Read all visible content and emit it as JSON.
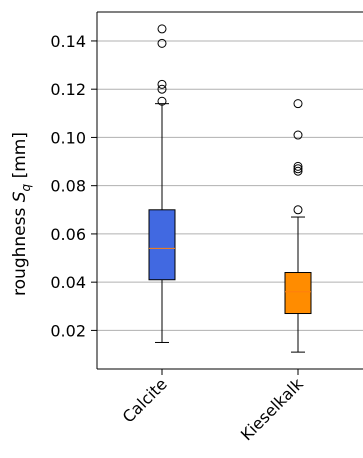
{
  "chart_data": {
    "type": "box",
    "categories": [
      "Calcite",
      "Kieselkalk"
    ],
    "ylabel_prefix": "roughness ",
    "ylabel_symbol": "S",
    "ylabel_subscript": "q",
    "ylabel_suffix": " [mm]",
    "ylim": [
      0.004,
      0.152
    ],
    "yticks": [
      0.02,
      0.04,
      0.06,
      0.08,
      0.1,
      0.12,
      0.14
    ],
    "ytick_labels": [
      "0.02",
      "0.04",
      "0.06",
      "0.08",
      "0.10",
      "0.12",
      "0.14"
    ],
    "grid": "horizontal",
    "boxes": [
      {
        "category": "Calcite",
        "color": "#4169e1",
        "whisker_low": 0.015,
        "q1": 0.041,
        "median": 0.054,
        "q3": 0.07,
        "whisker_high": 0.114,
        "outliers": [
          0.145,
          0.139,
          0.122,
          0.12,
          0.115
        ]
      },
      {
        "category": "Kieselkalk",
        "color": "#ff8c00",
        "whisker_low": 0.011,
        "q1": 0.027,
        "median": 0.036,
        "q3": 0.044,
        "whisker_high": 0.067,
        "outliers": [
          0.114,
          0.101,
          0.088,
          0.087,
          0.086,
          0.07
        ]
      }
    ],
    "median_color": "#ff7f0e",
    "box_edge_color": "#000000"
  }
}
